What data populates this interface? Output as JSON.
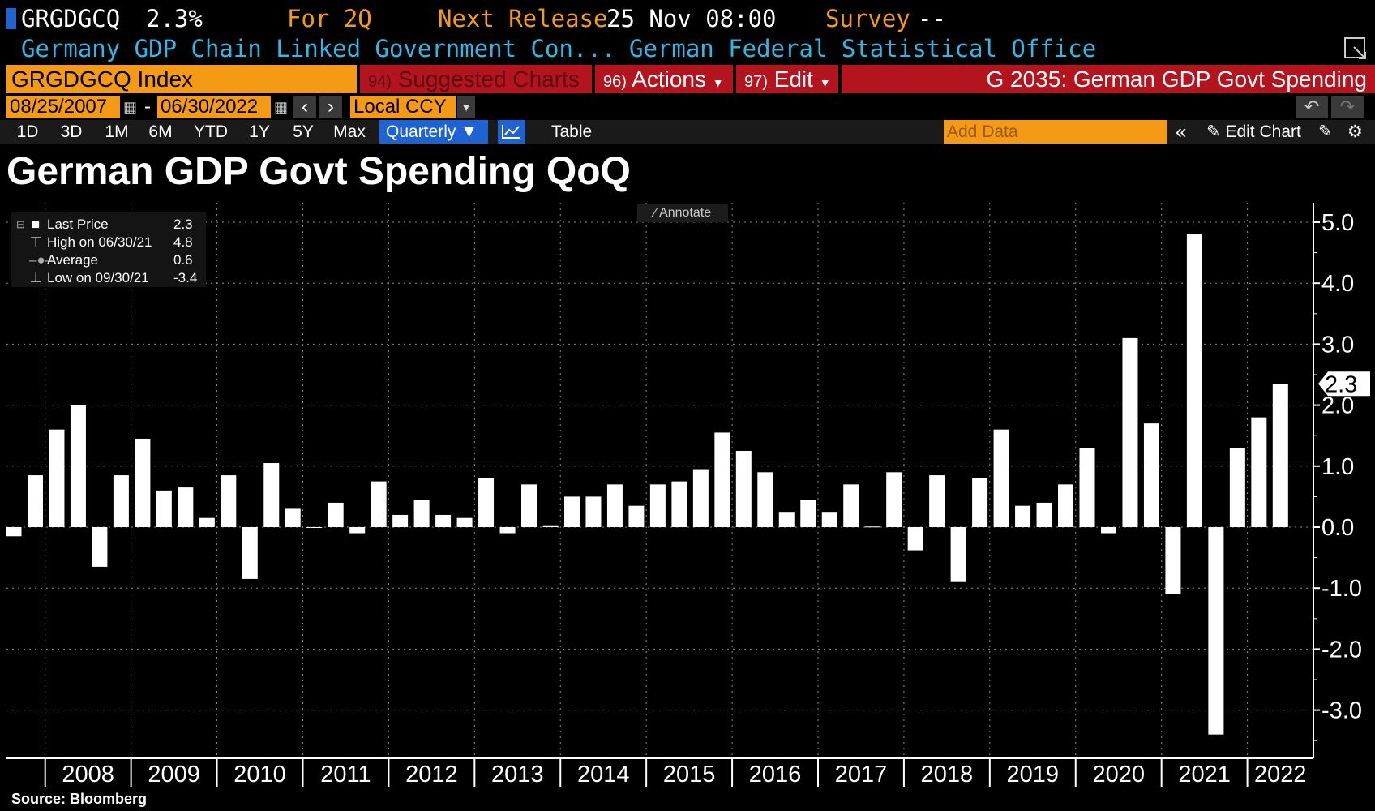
{
  "header": {
    "ticker": "GRGDGCQ",
    "last_value": "2.3%",
    "for_period": "For 2Q",
    "next_release_label": "Next Release",
    "next_release_value": "25 Nov 08:00",
    "survey_label": "Survey",
    "survey_value": "--",
    "description": "Germany GDP Chain Linked Government Con...",
    "source_org": "German Federal Statistical Office"
  },
  "command_bar": {
    "security": "GRGDGCQ Index",
    "suggested_num": "94)",
    "suggested_label": "Suggested Charts",
    "actions_num": "96)",
    "actions_label": "Actions",
    "edit_num": "97)",
    "edit_label": "Edit",
    "chart_code_title": "G 2035: German GDP Govt Spending"
  },
  "date_range": {
    "start": "08/25/2007",
    "separator": "-",
    "end": "06/30/2022",
    "currency": "Local CCY"
  },
  "period_bar": {
    "periods": [
      "1D",
      "3D",
      "1M",
      "6M",
      "YTD",
      "1Y",
      "5Y",
      "Max"
    ],
    "frequency": "Quarterly",
    "table_label": "Table",
    "add_data_placeholder": "Add Data",
    "edit_chart_label": "Edit Chart"
  },
  "annotate_label": "Annotate",
  "legend": {
    "last_price_label": "Last Price",
    "last_price_value": "2.3",
    "high_label": "High on 06/30/21",
    "high_value": "4.8",
    "average_label": "Average",
    "average_value": "0.6",
    "low_label": "Low on 09/30/21",
    "low_value": "-3.4"
  },
  "source_note": "Source: Bloomberg",
  "colors": {
    "orange": "#f59a14",
    "red_bar": "#b3141e",
    "blue_text": "#2fb7e6",
    "bar": "#ffffff"
  },
  "chart_data": {
    "type": "bar",
    "title": "German GDP Govt Spending QoQ",
    "xlabel": "",
    "ylabel": "",
    "ylim": [
      -3.6,
      5.3
    ],
    "yticks": [
      -3.0,
      -2.0,
      -1.0,
      0.0,
      1.0,
      2.0,
      3.0,
      4.0,
      5.0
    ],
    "ytick_labels": [
      "-3.0",
      "-2.0",
      "-1.0",
      "0.0",
      "1.0",
      "2.0",
      "3.0",
      "4.0",
      "5.0"
    ],
    "last_value_label": "2.3",
    "year_labels": [
      "2008",
      "2009",
      "2010",
      "2011",
      "2012",
      "2013",
      "2014",
      "2015",
      "2016",
      "2017",
      "2018",
      "2019",
      "2020",
      "2021",
      "2022"
    ],
    "first_year": 2008,
    "categories": [
      "Q3 2007",
      "Q4 2007",
      "Q1 2008",
      "Q2 2008",
      "Q3 2008",
      "Q4 2008",
      "Q1 2009",
      "Q2 2009",
      "Q3 2009",
      "Q4 2009",
      "Q1 2010",
      "Q2 2010",
      "Q3 2010",
      "Q4 2010",
      "Q1 2011",
      "Q2 2011",
      "Q3 2011",
      "Q4 2011",
      "Q1 2012",
      "Q2 2012",
      "Q3 2012",
      "Q4 2012",
      "Q1 2013",
      "Q2 2013",
      "Q3 2013",
      "Q4 2013",
      "Q1 2014",
      "Q2 2014",
      "Q3 2014",
      "Q4 2014",
      "Q1 2015",
      "Q2 2015",
      "Q3 2015",
      "Q4 2015",
      "Q1 2016",
      "Q2 2016",
      "Q3 2016",
      "Q4 2016",
      "Q1 2017",
      "Q2 2017",
      "Q3 2017",
      "Q4 2017",
      "Q1 2018",
      "Q2 2018",
      "Q3 2018",
      "Q4 2018",
      "Q1 2019",
      "Q2 2019",
      "Q3 2019",
      "Q4 2019",
      "Q1 2020",
      "Q2 2020",
      "Q3 2020",
      "Q4 2020",
      "Q1 2021",
      "Q2 2021",
      "Q3 2021",
      "Q4 2021",
      "Q1 2022",
      "Q2 2022"
    ],
    "values": [
      -0.15,
      0.85,
      1.6,
      2.0,
      -0.65,
      0.85,
      1.45,
      0.6,
      0.65,
      0.15,
      0.85,
      -0.85,
      1.05,
      0.3,
      0.0,
      0.4,
      -0.1,
      0.75,
      0.2,
      0.45,
      0.2,
      0.15,
      0.8,
      -0.1,
      0.7,
      0.03,
      0.5,
      0.5,
      0.7,
      0.35,
      0.7,
      0.75,
      0.95,
      1.55,
      1.25,
      0.9,
      0.25,
      0.45,
      0.25,
      0.7,
      0.01,
      0.9,
      -0.38,
      0.85,
      -0.9,
      0.8,
      1.6,
      0.35,
      0.4,
      0.7,
      1.3,
      -0.1,
      3.1,
      1.7,
      -1.1,
      4.8,
      -3.4,
      1.3,
      1.8,
      2.35
    ]
  }
}
